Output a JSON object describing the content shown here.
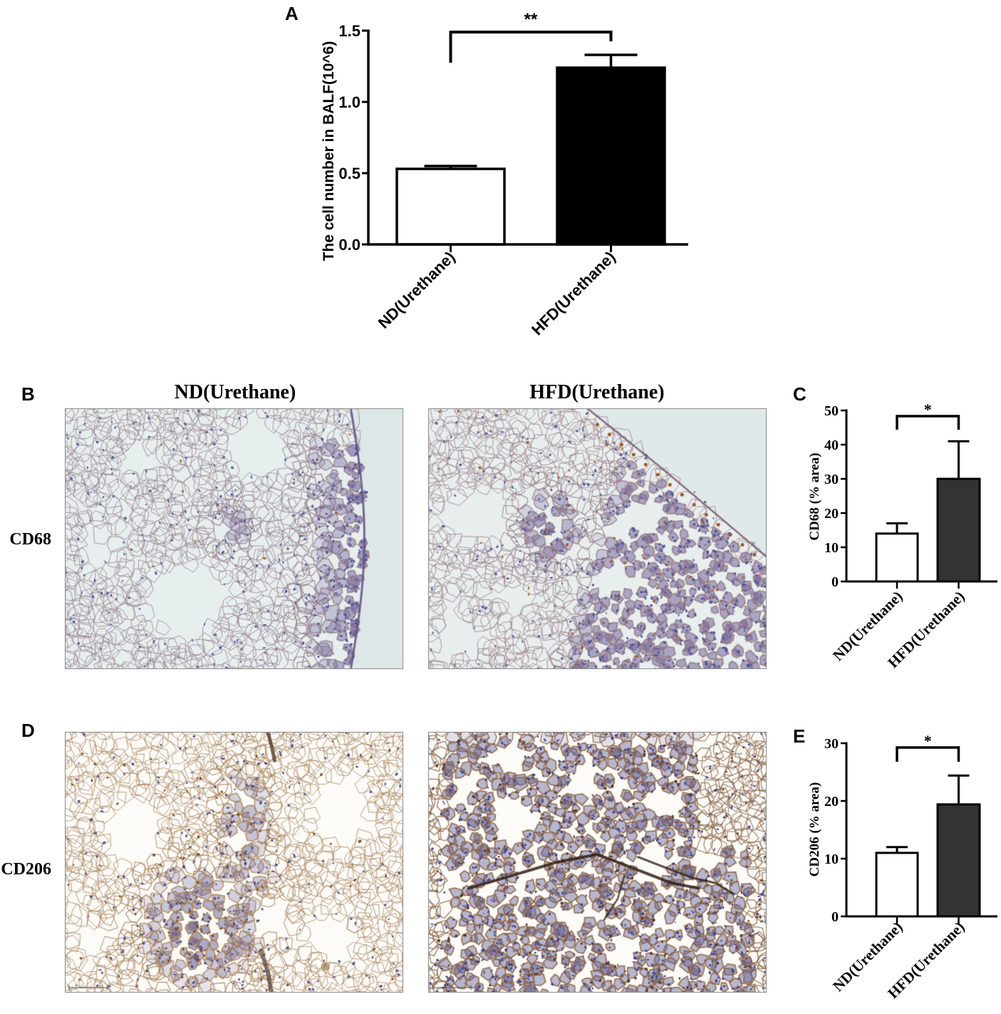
{
  "panels": {
    "a": "A",
    "b": "B",
    "c": "C",
    "d": "D",
    "e": "E"
  },
  "micrographs": {
    "column_titles": [
      "ND(Urethane)",
      "HFD(Urethane)"
    ],
    "row_labels": [
      "CD68",
      "CD206"
    ]
  },
  "chart_data": [
    {
      "type": "bar",
      "categories": [
        "ND(Urethane)",
        "HFD(Urethane)"
      ],
      "values": [
        0.53,
        1.24
      ],
      "errors": [
        0.02,
        0.09
      ],
      "ylabel": "The cell number in BALF(10^6)",
      "ylim": [
        0,
        1.5
      ],
      "yticks": [
        0,
        0.5,
        1.0,
        1.5
      ],
      "ytick_labels": [
        "0.0",
        "0.5",
        "1.0",
        "1.5"
      ],
      "colors": [
        "#ffffff",
        "#000000"
      ],
      "significance": {
        "between": [
          0,
          1
        ],
        "label": "**"
      },
      "grid": false
    },
    {
      "type": "bar",
      "categories": [
        "ND(Urethane)",
        "HFD(Urethane)"
      ],
      "values": [
        14,
        30
      ],
      "errors": [
        3,
        11
      ],
      "ylabel": "CD68 (% area)",
      "ylim": [
        0,
        50
      ],
      "yticks": [
        0,
        10,
        20,
        30,
        40,
        50
      ],
      "ytick_labels": [
        "0",
        "10",
        "20",
        "30",
        "40",
        "50"
      ],
      "colors": [
        "#ffffff",
        "#333333"
      ],
      "significance": {
        "between": [
          0,
          1
        ],
        "label": "*"
      },
      "grid": false
    },
    {
      "type": "bar",
      "categories": [
        "ND(Urethane)",
        "HFD(Urethane)"
      ],
      "values": [
        11,
        19.4
      ],
      "errors": [
        1,
        5
      ],
      "ylabel": "CD206 (% area)",
      "ylim": [
        0,
        30
      ],
      "yticks": [
        0,
        10,
        20,
        30
      ],
      "ytick_labels": [
        "0",
        "10",
        "20",
        "30"
      ],
      "colors": [
        "#ffffff",
        "#333333"
      ],
      "significance": {
        "between": [
          0,
          1
        ],
        "label": "*"
      },
      "grid": false
    }
  ]
}
